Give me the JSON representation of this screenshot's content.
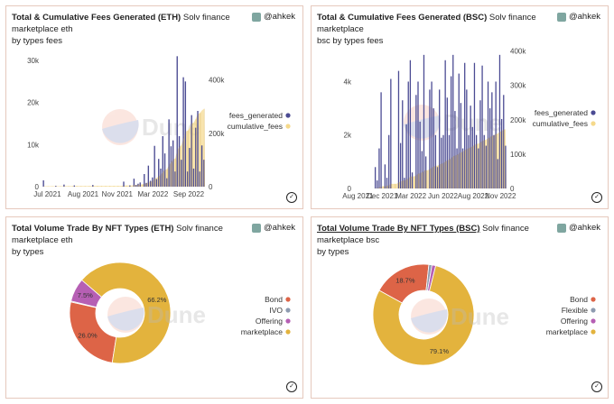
{
  "cards": [
    {
      "title": "Total & Cumulative Fees Generated (ETH)",
      "subtitle": "Solv finance marketplace eth",
      "subtitle2": "by types fees",
      "author": "@ahkek"
    },
    {
      "title": "Total & Cumulative Fees Generated (BSC)",
      "subtitle": "Solv finance marketplace",
      "subtitle2": "bsc by types fees",
      "author": "@ahkek"
    },
    {
      "title": "Total Volume Trade By NFT Types (ETH)",
      "subtitle": "Solv finance marketplace eth",
      "subtitle2": "by types",
      "author": "@ahkek"
    },
    {
      "title": "Total Volume Trade By NFT Types (BSC)",
      "subtitle": "Solv finance marketplace bsc",
      "subtitle2": "by types",
      "author": "@ahkek"
    }
  ],
  "watermark": "Dune",
  "check_glyph": "✓",
  "colors": {
    "fees": "#4b4b93",
    "cumulative": "#f5d98b",
    "bond": "#dd6447",
    "ivo": "#8e9bb0",
    "offering": "#b65fb4",
    "marketplace": "#e3b33d"
  },
  "chart_data": [
    {
      "type": "bar",
      "title": "Total & Cumulative Fees Generated (ETH)",
      "x_ticks": [
        "Jul 2021",
        "Aug 2021",
        "Nov 2021",
        "Mar 2022",
        "Sep 2022"
      ],
      "y_left_ticks": [
        "0",
        "10k",
        "20k",
        "30k"
      ],
      "y_left_range": [
        0,
        33000
      ],
      "y_right_ticks": [
        "0",
        "200k",
        "400k"
      ],
      "y_right_range": [
        0,
        520000
      ],
      "legend": [
        "fees_generated",
        "cumulative_fees"
      ],
      "series": [
        {
          "name": "fees_generated",
          "values": [
            1500,
            0,
            0,
            0,
            0,
            0,
            200,
            0,
            0,
            0,
            500,
            0,
            0,
            0,
            0,
            300,
            0,
            0,
            0,
            0,
            0,
            0,
            0,
            0,
            400,
            0,
            0,
            0,
            0,
            0,
            0,
            0,
            0,
            0,
            0,
            0,
            0,
            0,
            0,
            1200,
            0,
            0,
            300,
            0,
            1900,
            400,
            700,
            1000,
            0,
            3000,
            900,
            5000,
            1400,
            2200,
            9700,
            1800,
            6600,
            4300,
            12000,
            7900,
            2000,
            16000,
            9600,
            11000,
            3600,
            31000,
            12000,
            6400,
            26000,
            25000,
            3600,
            9200,
            17000,
            4300,
            14000,
            18000,
            3600,
            9800,
            6400
          ]
        },
        {
          "name": "cumulative_fees",
          "values": [
            1500,
            1500,
            1500,
            1500,
            1500,
            1500,
            1700,
            1700,
            1700,
            1700,
            2200,
            2200,
            2200,
            2200,
            2200,
            2500,
            2500,
            2500,
            2500,
            2500,
            2500,
            2500,
            2500,
            2500,
            2900,
            2900,
            2900,
            2900,
            2900,
            2900,
            2900,
            2900,
            2900,
            2900,
            2900,
            2900,
            2900,
            2900,
            2900,
            4100,
            4100,
            4100,
            4400,
            4400,
            6300,
            6700,
            7400,
            8400,
            8400,
            11400,
            12300,
            17300,
            18700,
            20900,
            30600,
            32400,
            39000,
            43300,
            55300,
            63200,
            65200,
            81200,
            90800,
            101800,
            105400,
            136400,
            148400,
            154800,
            180800,
            205800,
            209400,
            218600,
            235600,
            239900,
            253900,
            271900,
            275500,
            285300,
            291700
          ]
        }
      ]
    },
    {
      "type": "bar",
      "title": "Total & Cumulative Fees Generated (BSC)",
      "x_ticks": [
        "Aug 2021",
        "Dec 2021",
        "Mar 2022",
        "Jun 2022",
        "Aug 2022",
        "Nov 2022"
      ],
      "y_left_ticks": [
        "0",
        "2k",
        "4k"
      ],
      "y_left_range": [
        0,
        5400
      ],
      "y_right_ticks": [
        "0",
        "100k",
        "200k",
        "300k",
        "400k"
      ],
      "y_right_range": [
        0,
        420000
      ],
      "legend": [
        "fees_generated",
        "cumulative_fees"
      ],
      "series": [
        {
          "name": "fees_generated",
          "values": [
            0,
            0,
            0,
            0,
            0,
            0,
            0,
            0,
            0,
            0,
            800,
            300,
            1500,
            3600,
            0,
            900,
            400,
            2000,
            4100,
            0,
            0,
            0,
            4400,
            1700,
            3300,
            400,
            2400,
            4000,
            4800,
            600,
            0,
            3500,
            4000,
            2500,
            1400,
            5000,
            1200,
            0,
            3700,
            4000,
            3000,
            2000,
            800,
            3700,
            1900,
            2000,
            4800,
            3400,
            2000,
            4200,
            5000,
            2900,
            1500,
            4300,
            3200,
            1500,
            4700,
            3700,
            2000,
            3100,
            2300,
            4700,
            2000,
            1500,
            3300,
            4600,
            2000,
            1600,
            4000,
            3000,
            3600,
            2000,
            4000,
            1100,
            5000,
            2600,
            3500,
            1600
          ]
        },
        {
          "name": "cumulative_fees",
          "values": [
            0,
            0,
            0,
            0,
            0,
            0,
            0,
            0,
            0,
            0,
            800,
            1100,
            2600,
            6200,
            6200,
            7100,
            7500,
            9500,
            13600,
            13600,
            13600,
            13600,
            18000,
            19700,
            23000,
            23400,
            25800,
            29800,
            34600,
            35200,
            35200,
            38700,
            42700,
            45200,
            46600,
            51600,
            52800,
            52800,
            56500,
            60500,
            63500,
            65500,
            66300,
            70000,
            71900,
            73900,
            78700,
            82100,
            84100,
            88300,
            93300,
            96200,
            97700,
            102000,
            105200,
            106700,
            111400,
            115100,
            117100,
            120200,
            122500,
            127200,
            129200,
            130700,
            134000,
            138600,
            140600,
            142200,
            146200,
            149200,
            152800,
            154800,
            158800,
            159900,
            164900,
            167500,
            171000,
            172600
          ]
        }
      ]
    },
    {
      "type": "pie",
      "title": "Total Volume Trade By NFT Types (ETH)",
      "labels": [
        "Bond",
        "IVO",
        "Offering",
        "marketplace"
      ],
      "values": [
        26.0,
        0.3,
        7.5,
        66.2
      ],
      "data_labels": [
        "26.0%",
        "",
        "7.5%",
        "66.2%"
      ]
    },
    {
      "type": "pie",
      "title": "Total Volume Trade By NFT Types (BSC)",
      "labels": [
        "Bond",
        "Flexible",
        "Offering",
        "marketplace"
      ],
      "values": [
        18.7,
        1.0,
        1.2,
        79.1
      ],
      "data_labels": [
        "18.7%",
        "",
        "",
        "79.1%"
      ]
    }
  ]
}
